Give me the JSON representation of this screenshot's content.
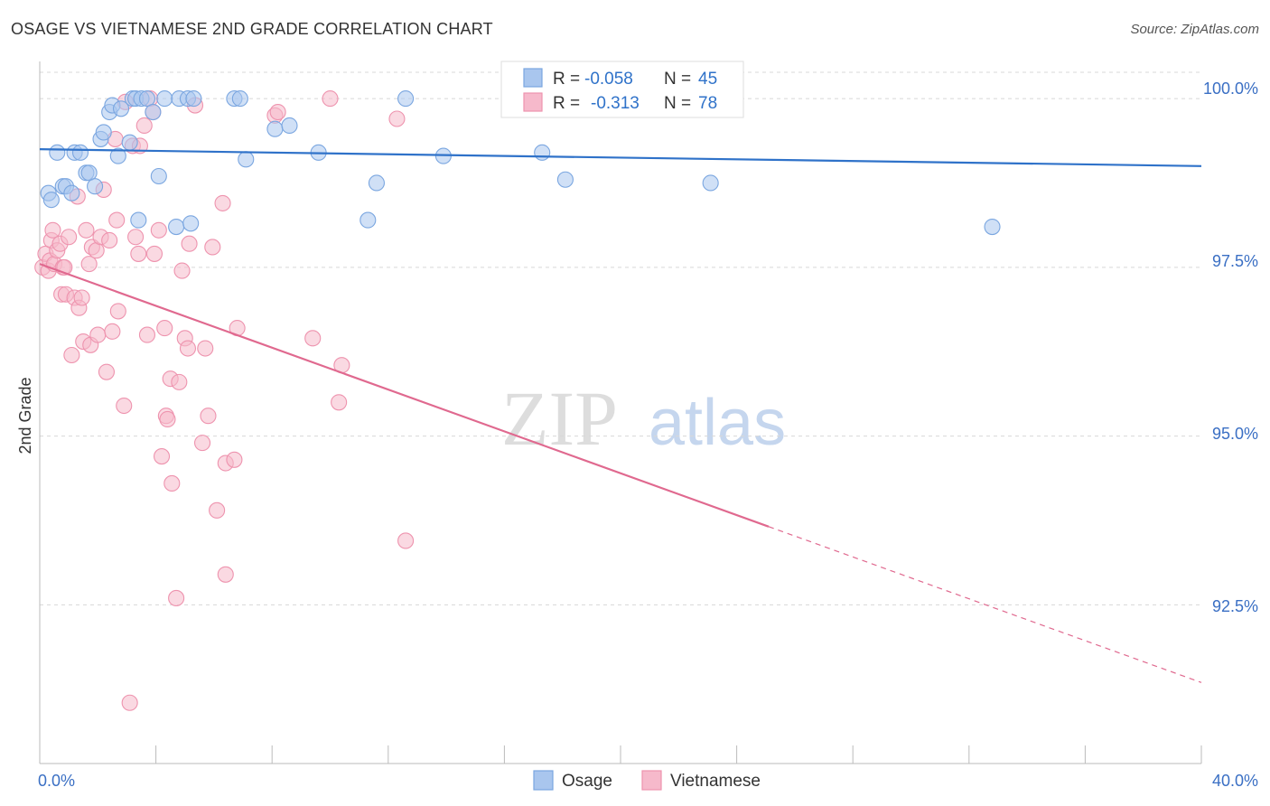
{
  "title": "OSAGE VS VIETNAMESE 2ND GRADE CORRELATION CHART",
  "source": "Source: ZipAtlas.com",
  "watermark": {
    "zip": "ZIP",
    "atlas": "atlas"
  },
  "colors": {
    "osage_fill": "#a9c6ee",
    "osage_stroke": "#7aa6e0",
    "osage_line": "#2f72c9",
    "vietnamese_fill": "#f6b9cb",
    "vietnamese_stroke": "#ee93ae",
    "vietnamese_line": "#e0698f",
    "grid": "#d8d8d8",
    "tick_text": "#3a6fc4"
  },
  "legend": {
    "osage": {
      "r_label": "R = ",
      "r_value": "-0.058",
      "n_label": "N = ",
      "n_value": "45"
    },
    "vietnamese": {
      "r_label": "R = ",
      "r_value": "-0.313",
      "n_label": "N = ",
      "n_value": "78"
    }
  },
  "chart_data": {
    "type": "scatter",
    "title": "OSAGE VS VIETNAMESE 2ND GRADE CORRELATION CHART",
    "xlabel": "",
    "ylabel": "2nd Grade",
    "xlim": [
      0,
      40
    ],
    "ylim": [
      90.15,
      100.55
    ],
    "x_tick_labels": [
      "0.0%",
      "40.0%"
    ],
    "y_ticks": [
      100.0,
      97.5,
      95.0,
      92.5
    ],
    "y_tick_labels": [
      "100.0%",
      "97.5%",
      "95.0%",
      "92.5%"
    ],
    "series": [
      {
        "name": "Osage",
        "trend": {
          "x": [
            0,
            40
          ],
          "y": [
            99.25,
            99.0
          ],
          "solid_to_x": 40
        },
        "points": [
          {
            "x": 0.3,
            "y": 98.6
          },
          {
            "x": 0.4,
            "y": 98.5
          },
          {
            "x": 0.6,
            "y": 99.2
          },
          {
            "x": 0.8,
            "y": 98.7
          },
          {
            "x": 0.9,
            "y": 98.7
          },
          {
            "x": 1.1,
            "y": 98.6
          },
          {
            "x": 1.2,
            "y": 99.2
          },
          {
            "x": 1.4,
            "y": 99.2
          },
          {
            "x": 1.6,
            "y": 98.9
          },
          {
            "x": 1.7,
            "y": 98.9
          },
          {
            "x": 1.9,
            "y": 98.7
          },
          {
            "x": 2.1,
            "y": 99.4
          },
          {
            "x": 2.2,
            "y": 99.5
          },
          {
            "x": 2.4,
            "y": 99.8
          },
          {
            "x": 2.5,
            "y": 99.9
          },
          {
            "x": 2.7,
            "y": 99.15
          },
          {
            "x": 2.8,
            "y": 99.85
          },
          {
            "x": 3.1,
            "y": 99.35
          },
          {
            "x": 3.2,
            "y": 100.0
          },
          {
            "x": 3.3,
            "y": 100.0
          },
          {
            "x": 3.4,
            "y": 98.2
          },
          {
            "x": 3.5,
            "y": 100.0
          },
          {
            "x": 3.7,
            "y": 100.0
          },
          {
            "x": 3.9,
            "y": 99.8
          },
          {
            "x": 4.1,
            "y": 98.85
          },
          {
            "x": 4.3,
            "y": 100.0
          },
          {
            "x": 4.7,
            "y": 98.1
          },
          {
            "x": 4.8,
            "y": 100.0
          },
          {
            "x": 5.1,
            "y": 100.0
          },
          {
            "x": 5.2,
            "y": 98.15
          },
          {
            "x": 5.3,
            "y": 100.0
          },
          {
            "x": 6.7,
            "y": 100.0
          },
          {
            "x": 6.9,
            "y": 100.0
          },
          {
            "x": 7.1,
            "y": 99.1
          },
          {
            "x": 8.1,
            "y": 99.55
          },
          {
            "x": 8.6,
            "y": 99.6
          },
          {
            "x": 9.6,
            "y": 99.2
          },
          {
            "x": 11.3,
            "y": 98.2
          },
          {
            "x": 11.6,
            "y": 98.75
          },
          {
            "x": 12.6,
            "y": 100.0
          },
          {
            "x": 13.9,
            "y": 99.15
          },
          {
            "x": 17.3,
            "y": 99.2
          },
          {
            "x": 18.1,
            "y": 98.8
          },
          {
            "x": 23.1,
            "y": 98.75
          },
          {
            "x": 32.8,
            "y": 98.1
          }
        ]
      },
      {
        "name": "Vietnamese",
        "trend": {
          "x": [
            0,
            40
          ],
          "y": [
            97.55,
            91.35
          ],
          "solid_to_x": 25.1
        },
        "points": [
          {
            "x": 0.1,
            "y": 97.5
          },
          {
            "x": 0.2,
            "y": 97.7
          },
          {
            "x": 0.3,
            "y": 97.45
          },
          {
            "x": 0.35,
            "y": 97.6
          },
          {
            "x": 0.4,
            "y": 97.9
          },
          {
            "x": 0.45,
            "y": 98.05
          },
          {
            "x": 0.5,
            "y": 97.55
          },
          {
            "x": 0.6,
            "y": 97.75
          },
          {
            "x": 0.7,
            "y": 97.85
          },
          {
            "x": 0.75,
            "y": 97.1
          },
          {
            "x": 0.8,
            "y": 97.5
          },
          {
            "x": 0.85,
            "y": 97.5
          },
          {
            "x": 0.9,
            "y": 97.1
          },
          {
            "x": 1.0,
            "y": 97.95
          },
          {
            "x": 1.1,
            "y": 96.2
          },
          {
            "x": 1.2,
            "y": 97.05
          },
          {
            "x": 1.3,
            "y": 98.55
          },
          {
            "x": 1.35,
            "y": 96.9
          },
          {
            "x": 1.45,
            "y": 97.05
          },
          {
            "x": 1.5,
            "y": 96.4
          },
          {
            "x": 1.6,
            "y": 98.05
          },
          {
            "x": 1.7,
            "y": 97.55
          },
          {
            "x": 1.75,
            "y": 96.35
          },
          {
            "x": 1.8,
            "y": 97.8
          },
          {
            "x": 1.95,
            "y": 97.75
          },
          {
            "x": 2.0,
            "y": 96.5
          },
          {
            "x": 2.1,
            "y": 97.95
          },
          {
            "x": 2.2,
            "y": 98.65
          },
          {
            "x": 2.3,
            "y": 95.95
          },
          {
            "x": 2.4,
            "y": 97.9
          },
          {
            "x": 2.5,
            "y": 96.55
          },
          {
            "x": 2.6,
            "y": 99.4
          },
          {
            "x": 2.65,
            "y": 98.2
          },
          {
            "x": 2.7,
            "y": 96.85
          },
          {
            "x": 2.9,
            "y": 95.45
          },
          {
            "x": 2.95,
            "y": 99.95
          },
          {
            "x": 3.1,
            "y": 91.05
          },
          {
            "x": 3.2,
            "y": 99.3
          },
          {
            "x": 3.3,
            "y": 97.95
          },
          {
            "x": 3.4,
            "y": 97.7
          },
          {
            "x": 3.45,
            "y": 99.3
          },
          {
            "x": 3.6,
            "y": 99.6
          },
          {
            "x": 3.7,
            "y": 96.5
          },
          {
            "x": 3.8,
            "y": 100.0
          },
          {
            "x": 3.9,
            "y": 99.8
          },
          {
            "x": 3.95,
            "y": 97.7
          },
          {
            "x": 4.1,
            "y": 98.05
          },
          {
            "x": 4.2,
            "y": 94.7
          },
          {
            "x": 4.3,
            "y": 96.6
          },
          {
            "x": 4.35,
            "y": 95.3
          },
          {
            "x": 4.4,
            "y": 95.25
          },
          {
            "x": 4.5,
            "y": 95.85
          },
          {
            "x": 4.55,
            "y": 94.3
          },
          {
            "x": 4.7,
            "y": 92.6
          },
          {
            "x": 4.8,
            "y": 95.8
          },
          {
            "x": 4.9,
            "y": 97.45
          },
          {
            "x": 5.0,
            "y": 96.45
          },
          {
            "x": 5.1,
            "y": 96.3
          },
          {
            "x": 5.15,
            "y": 97.85
          },
          {
            "x": 5.35,
            "y": 99.9
          },
          {
            "x": 5.6,
            "y": 94.9
          },
          {
            "x": 5.7,
            "y": 96.3
          },
          {
            "x": 5.8,
            "y": 95.3
          },
          {
            "x": 5.95,
            "y": 97.8
          },
          {
            "x": 6.1,
            "y": 93.9
          },
          {
            "x": 6.3,
            "y": 98.45
          },
          {
            "x": 6.4,
            "y": 94.6
          },
          {
            "x": 6.4,
            "y": 92.95
          },
          {
            "x": 6.7,
            "y": 94.65
          },
          {
            "x": 6.8,
            "y": 96.6
          },
          {
            "x": 8.1,
            "y": 99.75
          },
          {
            "x": 8.2,
            "y": 99.8
          },
          {
            "x": 9.4,
            "y": 96.45
          },
          {
            "x": 10.0,
            "y": 100.0
          },
          {
            "x": 10.3,
            "y": 95.5
          },
          {
            "x": 10.4,
            "y": 96.05
          },
          {
            "x": 12.3,
            "y": 99.7
          },
          {
            "x": 12.6,
            "y": 93.45
          }
        ]
      }
    ]
  }
}
